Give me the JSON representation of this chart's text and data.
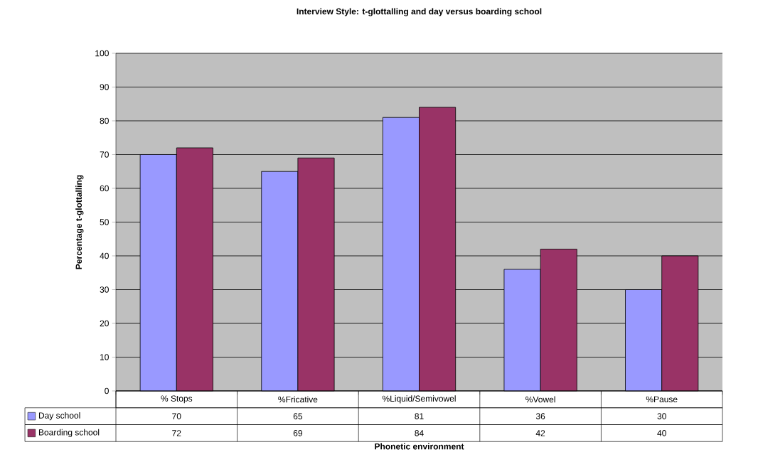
{
  "chart_data": {
    "type": "bar",
    "title": "Interview Style: t-glottalling and day versus boarding school",
    "xlabel": "Phonetic environment",
    "ylabel": "Percentage t-glottalling",
    "categories": [
      "% Stops",
      "%Fricative",
      "%Liquid/Semivowel",
      "%Vowel",
      "%Pause"
    ],
    "series": [
      {
        "name": "Day school",
        "color": "#9999ff",
        "values": [
          70,
          65,
          81,
          36,
          30
        ]
      },
      {
        "name": "Boarding school",
        "color": "#993366",
        "values": [
          72,
          69,
          84,
          42,
          40
        ]
      }
    ],
    "ylim": [
      0,
      100
    ],
    "yticks": [
      0,
      10,
      20,
      30,
      40,
      50,
      60,
      70,
      80,
      90,
      100
    ],
    "grid": "y",
    "data_labels": true,
    "legend": "bottom left"
  }
}
